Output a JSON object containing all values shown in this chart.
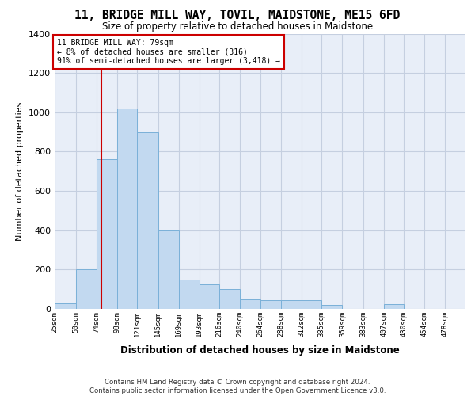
{
  "title": "11, BRIDGE MILL WAY, TOVIL, MAIDSTONE, ME15 6FD",
  "subtitle": "Size of property relative to detached houses in Maidstone",
  "xlabel": "Distribution of detached houses by size in Maidstone",
  "ylabel": "Number of detached properties",
  "footer_line1": "Contains HM Land Registry data © Crown copyright and database right 2024.",
  "footer_line2": "Contains public sector information licensed under the Open Government Licence v3.0.",
  "annotation_line1": "11 BRIDGE MILL WAY: 79sqm",
  "annotation_line2": "← 8% of detached houses are smaller (316)",
  "annotation_line3": "91% of semi-detached houses are larger (3,418) →",
  "property_size": 79,
  "bin_edges": [
    25,
    50,
    74,
    98,
    121,
    145,
    169,
    193,
    216,
    240,
    264,
    288,
    312,
    335,
    359,
    383,
    407,
    430,
    454,
    478
  ],
  "bar_heights": [
    30,
    200,
    760,
    1020,
    900,
    400,
    150,
    125,
    100,
    50,
    45,
    45,
    45,
    20,
    0,
    0,
    25,
    0,
    0,
    0
  ],
  "bar_color": "#c2d9f0",
  "bar_edge_color": "#7ab0d8",
  "line_color": "#cc0000",
  "background_color": "#e8eef8",
  "grid_color": "#c5cfe0",
  "ylim_max": 1400,
  "yticks": [
    0,
    200,
    400,
    600,
    800,
    1000,
    1200,
    1400
  ]
}
